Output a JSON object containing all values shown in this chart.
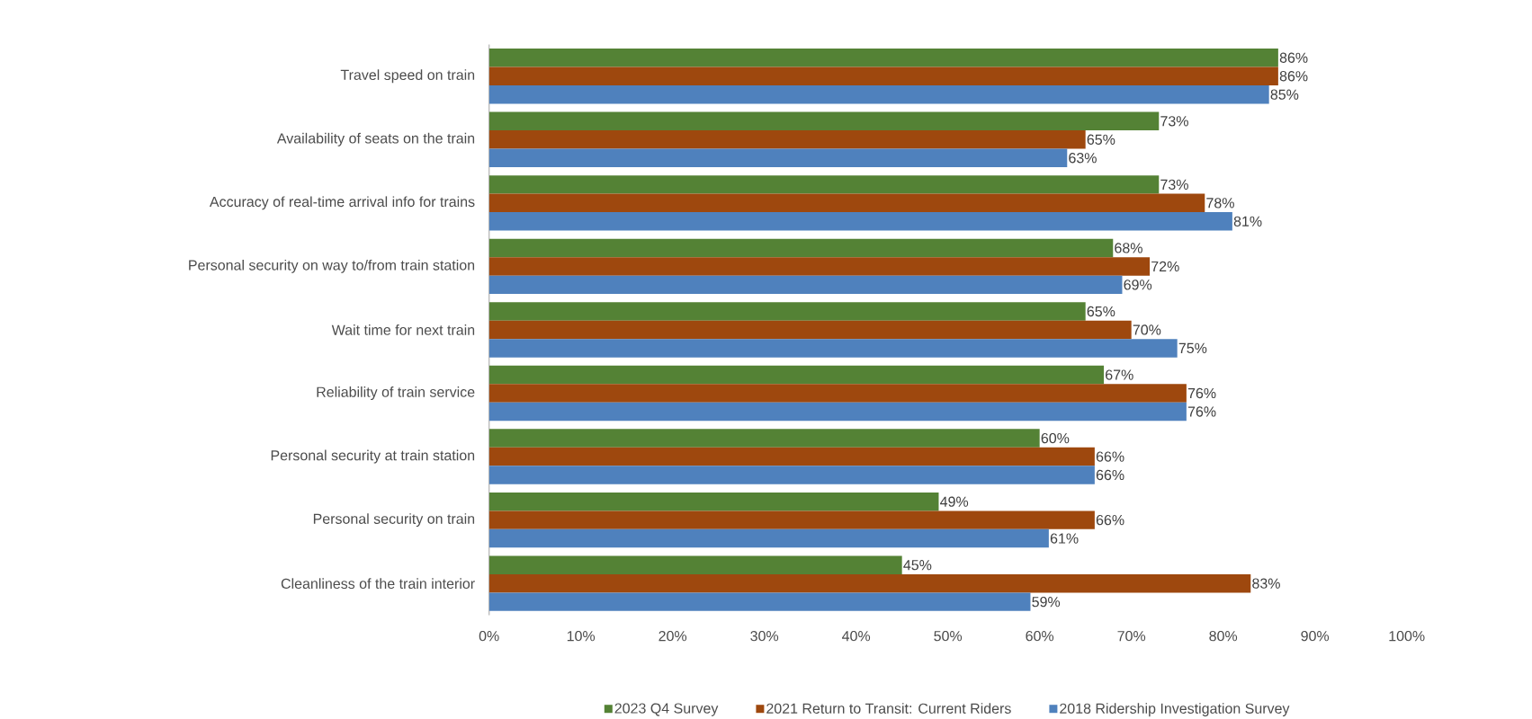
{
  "chart_data": {
    "type": "bar",
    "orientation": "horizontal",
    "categories": [
      "Travel speed on train",
      "Availability of seats on the train",
      "Accuracy of real-time arrival info for trains",
      "Personal security on  way to/from  train station",
      "Wait time for next train",
      "Reliability of train service",
      "Personal security at  train station",
      "Personal security on  train",
      "Cleanliness of the train interior"
    ],
    "series": [
      {
        "name": "2023 Q4 Survey",
        "color": "#548235",
        "values": [
          86,
          73,
          73,
          68,
          65,
          67,
          60,
          49,
          45
        ],
        "value_labels": [
          "86%",
          "73%",
          "73%",
          "68%",
          "65%",
          "67%",
          "60%",
          "49%",
          "45%"
        ]
      },
      {
        "name": "2021 Return to Transit: Current Riders",
        "color": "#9e480e",
        "values": [
          86,
          65,
          78,
          72,
          70,
          76,
          66,
          66,
          83
        ],
        "value_labels": [
          "86%",
          "65%",
          "78%",
          "72%",
          "70%",
          "76%",
          "66%",
          "66%",
          "83%"
        ]
      },
      {
        "name": "2018 Ridership Investigation Survey",
        "color": "#4f81bd",
        "values": [
          85,
          63,
          81,
          69,
          75,
          76,
          66,
          61,
          59
        ],
        "value_labels": [
          "85%",
          "63%",
          "81%",
          "69%",
          "75%",
          "76%",
          "66%",
          "61%",
          "59%"
        ]
      }
    ],
    "xlim": [
      0,
      100
    ],
    "xticks": [
      {
        "value": 0,
        "label": "0%"
      },
      {
        "value": 10,
        "label": "10%"
      },
      {
        "value": 20,
        "label": "20%"
      },
      {
        "value": 30,
        "label": "30%"
      },
      {
        "value": 40,
        "label": "40%"
      },
      {
        "value": 50,
        "label": "50%"
      },
      {
        "value": 60,
        "label": "60%"
      },
      {
        "value": 70,
        "label": "70%"
      },
      {
        "value": 80,
        "label": "80%"
      },
      {
        "value": 90,
        "label": "90%"
      },
      {
        "value": 100,
        "label": "100%"
      }
    ],
    "legend": "bottom",
    "grid": false
  }
}
